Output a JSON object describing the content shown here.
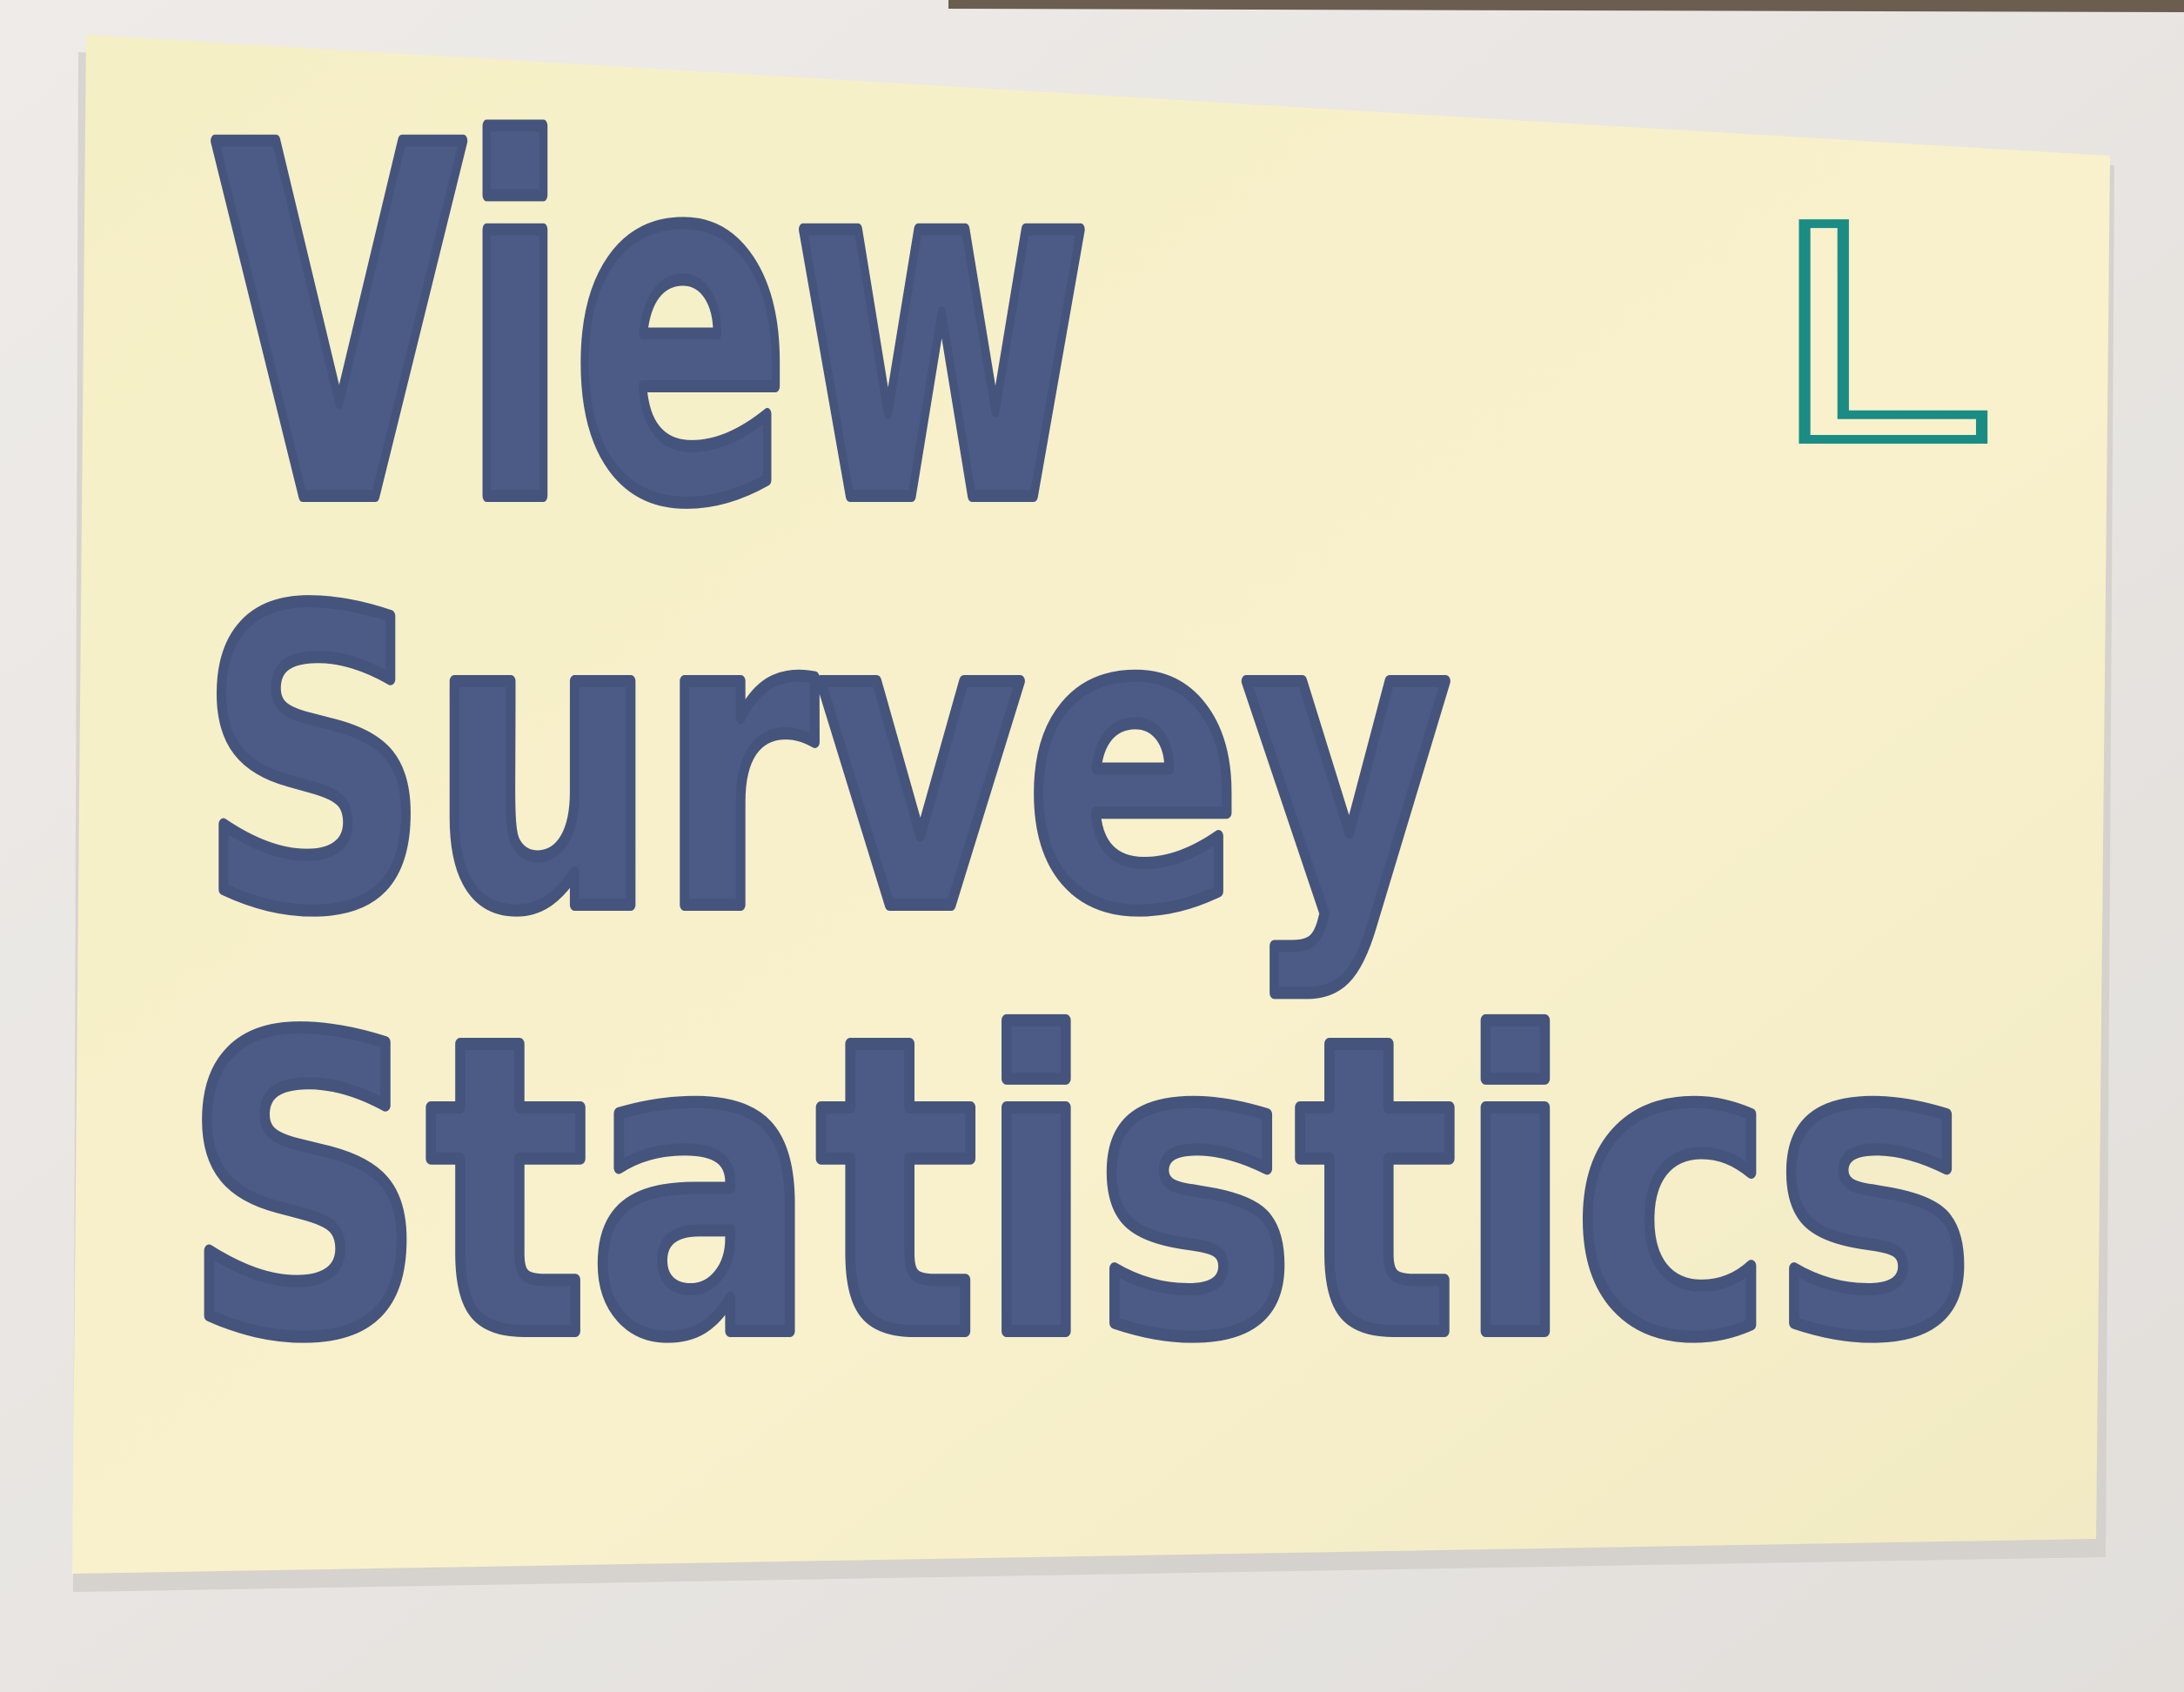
{
  "note": {
    "lines": [
      "View",
      "Survey",
      "Statistics"
    ],
    "tag": "L"
  }
}
